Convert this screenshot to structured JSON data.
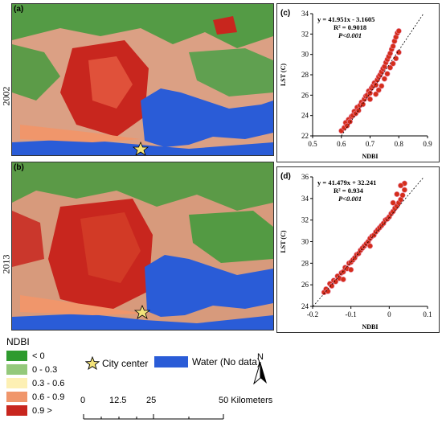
{
  "maps": [
    {
      "panel_label": "(a)",
      "year": "2002"
    },
    {
      "panel_label": "(b)",
      "year": "2013"
    }
  ],
  "legend": {
    "title": "NDBI",
    "items": [
      {
        "label": "< 0",
        "color": "#2e9b2e"
      },
      {
        "label": "0 - 0.3",
        "color": "#94c97b"
      },
      {
        "label": "0.3 - 0.6",
        "color": "#fdf0b4"
      },
      {
        "label": "0.6 - 0.9",
        "color": "#f0966b"
      },
      {
        "label": "0.9 >",
        "color": "#c8261e"
      }
    ]
  },
  "map_key": {
    "city_center_label": "City center",
    "water_label": "Water (No data)",
    "water_color": "#2a5cd7",
    "north_label": "N"
  },
  "scale_bar": {
    "ticks": [
      "0",
      "12.5",
      "25",
      "50 Kilometers"
    ]
  },
  "chart_data": [
    {
      "type": "scatter",
      "panel_label": "(c)",
      "equation": "y = 41.951x - 3.1605",
      "r_squared": "R² = 0.9018",
      "p_value": "P<0.001",
      "xlabel": "NDBI",
      "ylabel": "LST (C)",
      "xlim": [
        0.5,
        0.9
      ],
      "ylim": [
        22,
        34
      ],
      "xticks": [
        0.5,
        0.6,
        0.7,
        0.8,
        0.9
      ],
      "yticks": [
        22,
        24,
        26,
        28,
        30,
        32,
        34
      ],
      "trendline": {
        "slope": 41.951,
        "intercept": -3.1605
      },
      "point_color": "#d42d1a",
      "points": [
        [
          0.6,
          22.5
        ],
        [
          0.61,
          22.8
        ],
        [
          0.615,
          23.3
        ],
        [
          0.62,
          23.0
        ],
        [
          0.625,
          23.6
        ],
        [
          0.63,
          23.4
        ],
        [
          0.635,
          23.9
        ],
        [
          0.64,
          24.0
        ],
        [
          0.645,
          24.4
        ],
        [
          0.65,
          24.2
        ],
        [
          0.655,
          24.8
        ],
        [
          0.66,
          24.5
        ],
        [
          0.665,
          25.0
        ],
        [
          0.67,
          25.3
        ],
        [
          0.675,
          25.1
        ],
        [
          0.68,
          25.6
        ],
        [
          0.685,
          25.9
        ],
        [
          0.69,
          26.0
        ],
        [
          0.695,
          26.4
        ],
        [
          0.7,
          26.2
        ],
        [
          0.705,
          26.7
        ],
        [
          0.71,
          26.9
        ],
        [
          0.715,
          27.2
        ],
        [
          0.72,
          27.0
        ],
        [
          0.725,
          27.5
        ],
        [
          0.73,
          27.8
        ],
        [
          0.735,
          28.0
        ],
        [
          0.74,
          28.3
        ],
        [
          0.745,
          28.6
        ],
        [
          0.75,
          28.8
        ],
        [
          0.755,
          29.2
        ],
        [
          0.76,
          29.5
        ],
        [
          0.765,
          29.8
        ],
        [
          0.77,
          30.1
        ],
        [
          0.775,
          30.5
        ],
        [
          0.78,
          30.8
        ],
        [
          0.785,
          31.3
        ],
        [
          0.79,
          31.7
        ],
        [
          0.795,
          32.1
        ],
        [
          0.8,
          32.3
        ],
        [
          0.75,
          27.6
        ],
        [
          0.74,
          26.9
        ],
        [
          0.73,
          26.5
        ],
        [
          0.76,
          28.1
        ],
        [
          0.77,
          28.7
        ],
        [
          0.78,
          29.1
        ],
        [
          0.79,
          29.6
        ],
        [
          0.8,
          30.2
        ],
        [
          0.7,
          25.6
        ],
        [
          0.72,
          26.1
        ]
      ]
    },
    {
      "type": "scatter",
      "panel_label": "(d)",
      "equation": "y = 41.479x + 32.241",
      "r_squared": "R² = 0.934",
      "p_value": "P<0.001",
      "xlabel": "NDBI",
      "ylabel": "LST (C)",
      "xlim": [
        -0.2,
        0.1
      ],
      "ylim": [
        24,
        36
      ],
      "xticks": [
        -0.2,
        -0.1,
        0,
        0.1
      ],
      "yticks": [
        24,
        26,
        28,
        30,
        32,
        34,
        36
      ],
      "trendline": {
        "slope": 41.479,
        "intercept": 32.241
      },
      "point_color": "#d42d1a",
      "points": [
        [
          -0.17,
          25.3
        ],
        [
          -0.165,
          25.6
        ],
        [
          -0.16,
          25.4
        ],
        [
          -0.155,
          26.1
        ],
        [
          -0.15,
          25.9
        ],
        [
          -0.145,
          26.4
        ],
        [
          -0.14,
          26.3
        ],
        [
          -0.135,
          26.8
        ],
        [
          -0.13,
          26.6
        ],
        [
          -0.125,
          27.1
        ],
        [
          -0.12,
          27.2
        ],
        [
          -0.115,
          27.6
        ],
        [
          -0.11,
          27.5
        ],
        [
          -0.105,
          28.0
        ],
        [
          -0.1,
          28.1
        ],
        [
          -0.095,
          28.3
        ],
        [
          -0.09,
          28.5
        ],
        [
          -0.085,
          28.8
        ],
        [
          -0.08,
          28.9
        ],
        [
          -0.075,
          29.2
        ],
        [
          -0.07,
          29.4
        ],
        [
          -0.065,
          29.6
        ],
        [
          -0.06,
          29.8
        ],
        [
          -0.055,
          30.0
        ],
        [
          -0.05,
          30.3
        ],
        [
          -0.045,
          30.5
        ],
        [
          -0.04,
          30.6
        ],
        [
          -0.035,
          30.9
        ],
        [
          -0.03,
          31.1
        ],
        [
          -0.025,
          31.3
        ],
        [
          -0.02,
          31.5
        ],
        [
          -0.015,
          31.7
        ],
        [
          -0.01,
          32.0
        ],
        [
          -0.005,
          32.1
        ],
        [
          0.0,
          32.3
        ],
        [
          0.005,
          32.6
        ],
        [
          0.01,
          32.8
        ],
        [
          0.015,
          33.1
        ],
        [
          0.02,
          33.3
        ],
        [
          0.025,
          33.6
        ],
        [
          0.03,
          33.9
        ],
        [
          0.035,
          34.3
        ],
        [
          0.04,
          34.8
        ],
        [
          0.04,
          35.4
        ],
        [
          0.03,
          35.2
        ],
        [
          0.02,
          34.4
        ],
        [
          -0.05,
          29.6
        ],
        [
          -0.1,
          27.4
        ],
        [
          -0.12,
          26.5
        ],
        [
          0.01,
          33.6
        ]
      ]
    }
  ]
}
